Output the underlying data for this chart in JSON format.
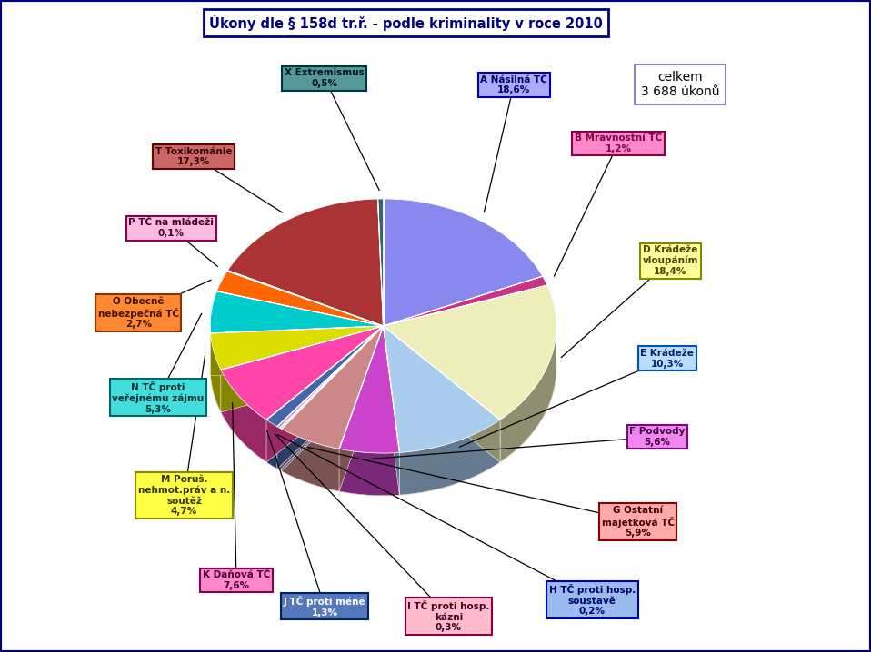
{
  "title": "Úkony dle § 158d tr.ř. - podle kriminality v roce 2010",
  "total_label": "celkem\n3 688 úkonů",
  "bg_color": "#ffffff",
  "slices": [
    {
      "label": "A Násilná TČ",
      "pct": 18.6,
      "color": "#8888ee",
      "lbg": "#aaaaff",
      "lec": "#0000aa",
      "ltc": "#000066"
    },
    {
      "label": "B Mravnostní TČ",
      "pct": 1.2,
      "color": "#cc3388",
      "lbg": "#ff88cc",
      "lec": "#880044",
      "ltc": "#880044"
    },
    {
      "label": "D Krádeže\nvloupáním",
      "pct": 18.4,
      "color": "#eeeebb",
      "lbg": "#ffff99",
      "lec": "#888800",
      "ltc": "#444400"
    },
    {
      "label": "E Krádeže",
      "pct": 10.3,
      "color": "#aaccee",
      "lbg": "#bbddff",
      "lec": "#0055aa",
      "ltc": "#002266"
    },
    {
      "label": "F Podvody",
      "pct": 5.6,
      "color": "#cc44cc",
      "lbg": "#ee88ee",
      "lec": "#880088",
      "ltc": "#440044"
    },
    {
      "label": "G Ostatní\nmajetková TČ",
      "pct": 5.9,
      "color": "#cc8888",
      "lbg": "#ffaaaa",
      "lec": "#880000",
      "ltc": "#440000"
    },
    {
      "label": "H TČ proti hosp.\nsoustavě",
      "pct": 0.2,
      "color": "#7799cc",
      "lbg": "#99bbee",
      "lec": "#0000aa",
      "ltc": "#000066"
    },
    {
      "label": "I TČ proti hosp.\nkázni",
      "pct": 0.3,
      "color": "#cc88aa",
      "lbg": "#ffbbcc",
      "lec": "#880044",
      "ltc": "#440022"
    },
    {
      "label": "J TČ proti méně",
      "pct": 1.3,
      "color": "#4466aa",
      "lbg": "#5577bb",
      "lec": "#002266",
      "ltc": "#ffffff"
    },
    {
      "label": "K Daňová TČ",
      "pct": 7.6,
      "color": "#ff44aa",
      "lbg": "#ff88cc",
      "lec": "#880055",
      "ltc": "#440033"
    },
    {
      "label": "M Poruš.\nnehmot.práv a n.\nsoutěž",
      "pct": 4.7,
      "color": "#dddd00",
      "lbg": "#ffff44",
      "lec": "#888800",
      "ltc": "#333300"
    },
    {
      "label": "N TČ proti\nveřejnému zájmu",
      "pct": 5.3,
      "color": "#00cccc",
      "lbg": "#44dddd",
      "lec": "#006666",
      "ltc": "#003333"
    },
    {
      "label": "O Obecně\nnebezpečná TČ",
      "pct": 2.7,
      "color": "#ff6600",
      "lbg": "#ff8833",
      "lec": "#883300",
      "ltc": "#441100"
    },
    {
      "label": "P TČ na mládeži",
      "pct": 0.1,
      "color": "#ff88cc",
      "lbg": "#ffbbdd",
      "lec": "#880055",
      "ltc": "#440033"
    },
    {
      "label": "T Toxikománie",
      "pct": 17.3,
      "color": "#aa3333",
      "lbg": "#cc6666",
      "lec": "#660000",
      "ltc": "#330000"
    },
    {
      "label": "X Extremismus",
      "pct": 0.5,
      "color": "#336677",
      "lbg": "#559999",
      "lec": "#003344",
      "ltc": "#001122"
    }
  ],
  "label_positions": [
    {
      "bx": 0.62,
      "by": 0.87
    },
    {
      "bx": 0.78,
      "by": 0.78
    },
    {
      "bx": 0.86,
      "by": 0.6
    },
    {
      "bx": 0.855,
      "by": 0.45
    },
    {
      "bx": 0.84,
      "by": 0.33
    },
    {
      "bx": 0.81,
      "by": 0.2
    },
    {
      "bx": 0.74,
      "by": 0.08
    },
    {
      "bx": 0.52,
      "by": 0.055
    },
    {
      "bx": 0.33,
      "by": 0.07
    },
    {
      "bx": 0.195,
      "by": 0.11
    },
    {
      "bx": 0.115,
      "by": 0.24
    },
    {
      "bx": 0.075,
      "by": 0.39
    },
    {
      "bx": 0.045,
      "by": 0.52
    },
    {
      "bx": 0.095,
      "by": 0.65
    },
    {
      "bx": 0.13,
      "by": 0.76
    },
    {
      "bx": 0.33,
      "by": 0.88
    }
  ]
}
